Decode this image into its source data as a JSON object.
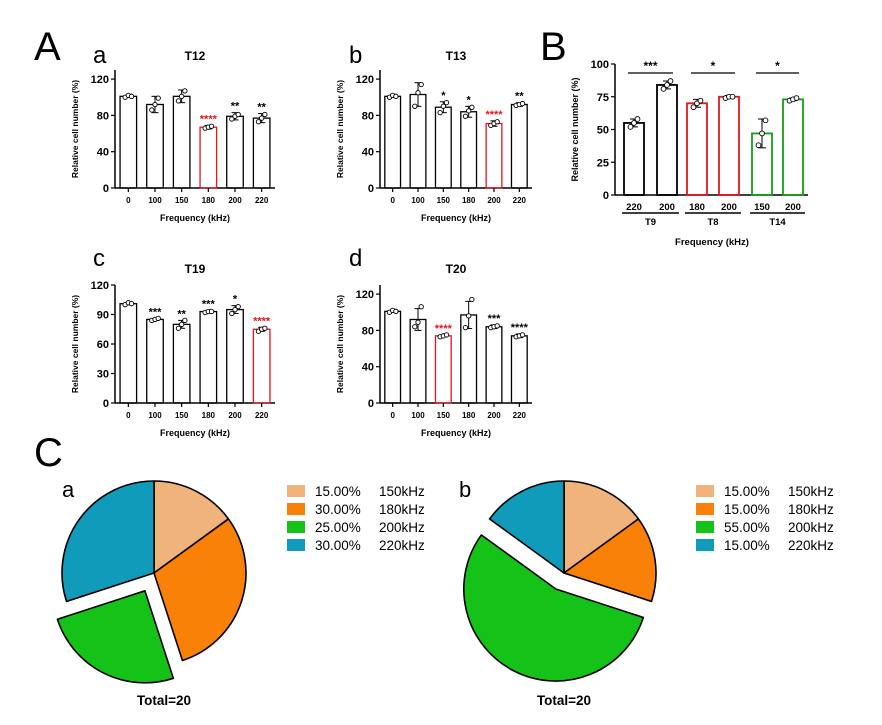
{
  "panels": {
    "A": "A",
    "B": "B",
    "C": "C"
  },
  "chart_data": [
    {
      "id": "a",
      "type": "bar",
      "panel_label": "a",
      "title": "T12",
      "xlabel": "Frequency (kHz)",
      "ylabel": "Relative cell number (%)",
      "categories": [
        "0",
        "100",
        "150",
        "180",
        "200",
        "220"
      ],
      "values": [
        101,
        92,
        101,
        67,
        79,
        77
      ],
      "errors": [
        1,
        9,
        7,
        2,
        4,
        5
      ],
      "points": [
        [
          100,
          102,
          101
        ],
        [
          86,
          92,
          99
        ],
        [
          96,
          101,
          107
        ],
        [
          66,
          67,
          68
        ],
        [
          76,
          79,
          81
        ],
        [
          73,
          77,
          81
        ]
      ],
      "highlight": [
        false,
        false,
        false,
        true,
        false,
        false
      ],
      "significance": [
        "",
        "",
        "",
        "****",
        "**",
        "**"
      ],
      "yticks": [
        0,
        40,
        80,
        120
      ],
      "ylim": [
        0,
        130
      ],
      "colors": {
        "normal": "#000000",
        "highlight": "#e8141e"
      }
    },
    {
      "id": "b",
      "type": "bar",
      "panel_label": "b",
      "title": "T13",
      "xlabel": "Frequency (kHz)",
      "ylabel": "Relative cell number (%)",
      "categories": [
        "0",
        "100",
        "150",
        "180",
        "200",
        "220"
      ],
      "values": [
        101,
        103,
        89,
        84,
        71,
        92
      ],
      "errors": [
        1,
        13,
        6,
        6,
        3,
        2
      ],
      "points": [
        [
          100,
          102,
          101
        ],
        [
          90,
          105,
          114
        ],
        [
          83,
          90,
          94
        ],
        [
          79,
          85,
          89
        ],
        [
          69,
          71,
          73
        ],
        [
          91,
          92,
          93
        ]
      ],
      "highlight": [
        false,
        false,
        false,
        false,
        true,
        false
      ],
      "significance": [
        "",
        "",
        "*",
        "*",
        "****",
        "**"
      ],
      "yticks": [
        0,
        40,
        80,
        120
      ],
      "ylim": [
        0,
        130
      ],
      "colors": {
        "normal": "#000000",
        "highlight": "#e8141e"
      }
    },
    {
      "id": "c",
      "type": "bar",
      "panel_label": "c",
      "title": "T19",
      "xlabel": "Frequency (kHz)",
      "ylabel": "Relative cell number (%)",
      "categories": [
        "0",
        "100",
        "150",
        "180",
        "200",
        "220"
      ],
      "values": [
        101,
        85,
        80,
        93,
        95,
        75
      ],
      "errors": [
        1,
        1,
        4,
        1,
        4,
        2
      ],
      "points": [
        [
          100,
          102,
          101
        ],
        [
          84,
          85,
          86
        ],
        [
          76,
          80,
          84
        ],
        [
          92,
          93,
          93
        ],
        [
          91,
          95,
          98
        ],
        [
          73,
          75,
          76
        ]
      ],
      "highlight": [
        false,
        false,
        false,
        false,
        false,
        true
      ],
      "significance": [
        "",
        "***",
        "**",
        "***",
        "*",
        "****"
      ],
      "yticks": [
        0,
        30,
        60,
        90,
        120
      ],
      "ylim": [
        0,
        120
      ],
      "colors": {
        "normal": "#000000",
        "highlight": "#e8141e"
      }
    },
    {
      "id": "d",
      "type": "bar",
      "panel_label": "d",
      "title": "T20",
      "xlabel": "Frequency (kHz)",
      "ylabel": "Relative cell number (%)",
      "categories": [
        "0",
        "100",
        "150",
        "180",
        "200",
        "220"
      ],
      "values": [
        101,
        92,
        74,
        97,
        84,
        74
      ],
      "errors": [
        1,
        12,
        1,
        15,
        2,
        2
      ],
      "points": [
        [
          100,
          102,
          101
        ],
        [
          84,
          89,
          106
        ],
        [
          73,
          74,
          75
        ],
        [
          83,
          96,
          114
        ],
        [
          83,
          84,
          85
        ],
        [
          73,
          74,
          75
        ]
      ],
      "highlight": [
        false,
        false,
        true,
        false,
        false,
        false
      ],
      "significance": [
        "",
        "",
        "****",
        "",
        "***",
        "****"
      ],
      "yticks": [
        0,
        40,
        80,
        120
      ],
      "ylim": [
        0,
        130
      ],
      "colors": {
        "normal": "#000000",
        "highlight": "#e8141e"
      }
    },
    {
      "id": "B",
      "type": "bar",
      "xlabel": "Frequency (kHz)",
      "ylabel": "Relative cell number (%)",
      "categories": [
        "220",
        "200",
        "180",
        "200",
        "150",
        "200"
      ],
      "values": [
        55,
        84,
        70,
        75,
        47,
        73
      ],
      "errors": [
        3,
        3,
        3,
        1,
        11,
        1
      ],
      "points": [
        [
          52,
          55,
          58
        ],
        [
          81,
          84,
          87
        ],
        [
          67,
          70,
          72
        ],
        [
          74,
          75,
          75
        ],
        [
          38,
          47,
          57
        ],
        [
          72,
          73,
          74
        ]
      ],
      "colors_per_bar": [
        "#000000",
        "#000000",
        "#e8141e",
        "#e8141e",
        "#139e19",
        "#139e19"
      ],
      "groups": [
        {
          "label": "T9",
          "bars": [
            0,
            1
          ],
          "significance": "***"
        },
        {
          "label": "T8",
          "bars": [
            2,
            3
          ],
          "significance": "*"
        },
        {
          "label": "T14",
          "bars": [
            4,
            5
          ],
          "significance": "*"
        }
      ],
      "yticks": [
        0,
        25,
        50,
        75,
        100
      ],
      "ylim": [
        0,
        100
      ]
    },
    {
      "id": "Ca",
      "type": "pie",
      "panel_label": "a",
      "caption": "Total=20",
      "slices": [
        {
          "label": "150kHz",
          "value": 15,
          "pct": "15.00%",
          "color": "#f1b37c",
          "exploded": false
        },
        {
          "label": "180kHz",
          "value": 30,
          "pct": "30.00%",
          "color": "#f98107",
          "exploded": false
        },
        {
          "label": "200kHz",
          "value": 25,
          "pct": "25.00%",
          "color": "#15c217",
          "exploded": true
        },
        {
          "label": "220kHz",
          "value": 30,
          "pct": "30.00%",
          "color": "#119bba",
          "exploded": false
        }
      ]
    },
    {
      "id": "Cb",
      "type": "pie",
      "panel_label": "b",
      "caption": "Total=20",
      "slices": [
        {
          "label": "150kHz",
          "value": 15,
          "pct": "15.00%",
          "color": "#f1b37c",
          "exploded": false
        },
        {
          "label": "180kHz",
          "value": 15,
          "pct": "15.00%",
          "color": "#f98107",
          "exploded": false
        },
        {
          "label": "200kHz",
          "value": 55,
          "pct": "55.00%",
          "color": "#15c217",
          "exploded": true
        },
        {
          "label": "220kHz",
          "value": 15,
          "pct": "15.00%",
          "color": "#119bba",
          "exploded": false
        }
      ]
    }
  ]
}
